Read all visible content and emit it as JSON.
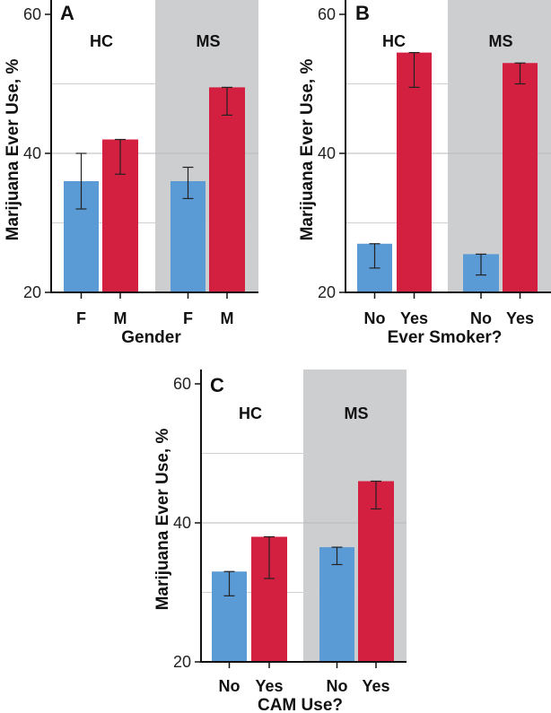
{
  "colors": {
    "female_no": "#5b9bd5",
    "male_yes": "#d42040",
    "shade": "#cdced0",
    "grid": "#cfd0d2",
    "axis": "#111111",
    "error": "#222222"
  },
  "chart_data": [
    {
      "type": "bar",
      "panel": "A",
      "groups": [
        "HC",
        "MS"
      ],
      "categories": [
        "F",
        "M",
        "F",
        "M"
      ],
      "series_colors": [
        "female_no",
        "male_yes",
        "female_no",
        "male_yes"
      ],
      "values": [
        36,
        42,
        36,
        49.5
      ],
      "error_low": [
        32,
        37,
        33.5,
        45.5
      ],
      "error_high": [
        40,
        42,
        38,
        49.5
      ],
      "title": "",
      "xlabel": "Gender",
      "ylabel": "Marijuana Ever Use, %",
      "ylim": [
        20,
        60
      ],
      "yticks": [
        20,
        40,
        60
      ]
    },
    {
      "type": "bar",
      "panel": "B",
      "groups": [
        "HC",
        "MS"
      ],
      "categories": [
        "No",
        "Yes",
        "No",
        "Yes"
      ],
      "series_colors": [
        "female_no",
        "male_yes",
        "female_no",
        "male_yes"
      ],
      "values": [
        27,
        54.5,
        25.5,
        53
      ],
      "error_low": [
        23.5,
        49.5,
        22.5,
        50
      ],
      "error_high": [
        27,
        54.5,
        25.5,
        53
      ],
      "title": "",
      "xlabel": "Ever Smoker?",
      "ylabel": "Marijuana Ever Use, %",
      "ylim": [
        20,
        60
      ],
      "yticks": [
        20,
        40,
        60
      ]
    },
    {
      "type": "bar",
      "panel": "C",
      "groups": [
        "HC",
        "MS"
      ],
      "categories": [
        "No",
        "Yes",
        "No",
        "Yes"
      ],
      "series_colors": [
        "female_no",
        "male_yes",
        "female_no",
        "male_yes"
      ],
      "values": [
        33,
        38,
        36.5,
        46
      ],
      "error_low": [
        29.5,
        32,
        34,
        42
      ],
      "error_high": [
        33,
        38,
        36.5,
        46
      ],
      "title": "",
      "xlabel": "CAM Use?",
      "ylabel": "Marijuana Ever Use, %",
      "ylim": [
        20,
        60
      ],
      "yticks": [
        20,
        40,
        60
      ]
    }
  ]
}
